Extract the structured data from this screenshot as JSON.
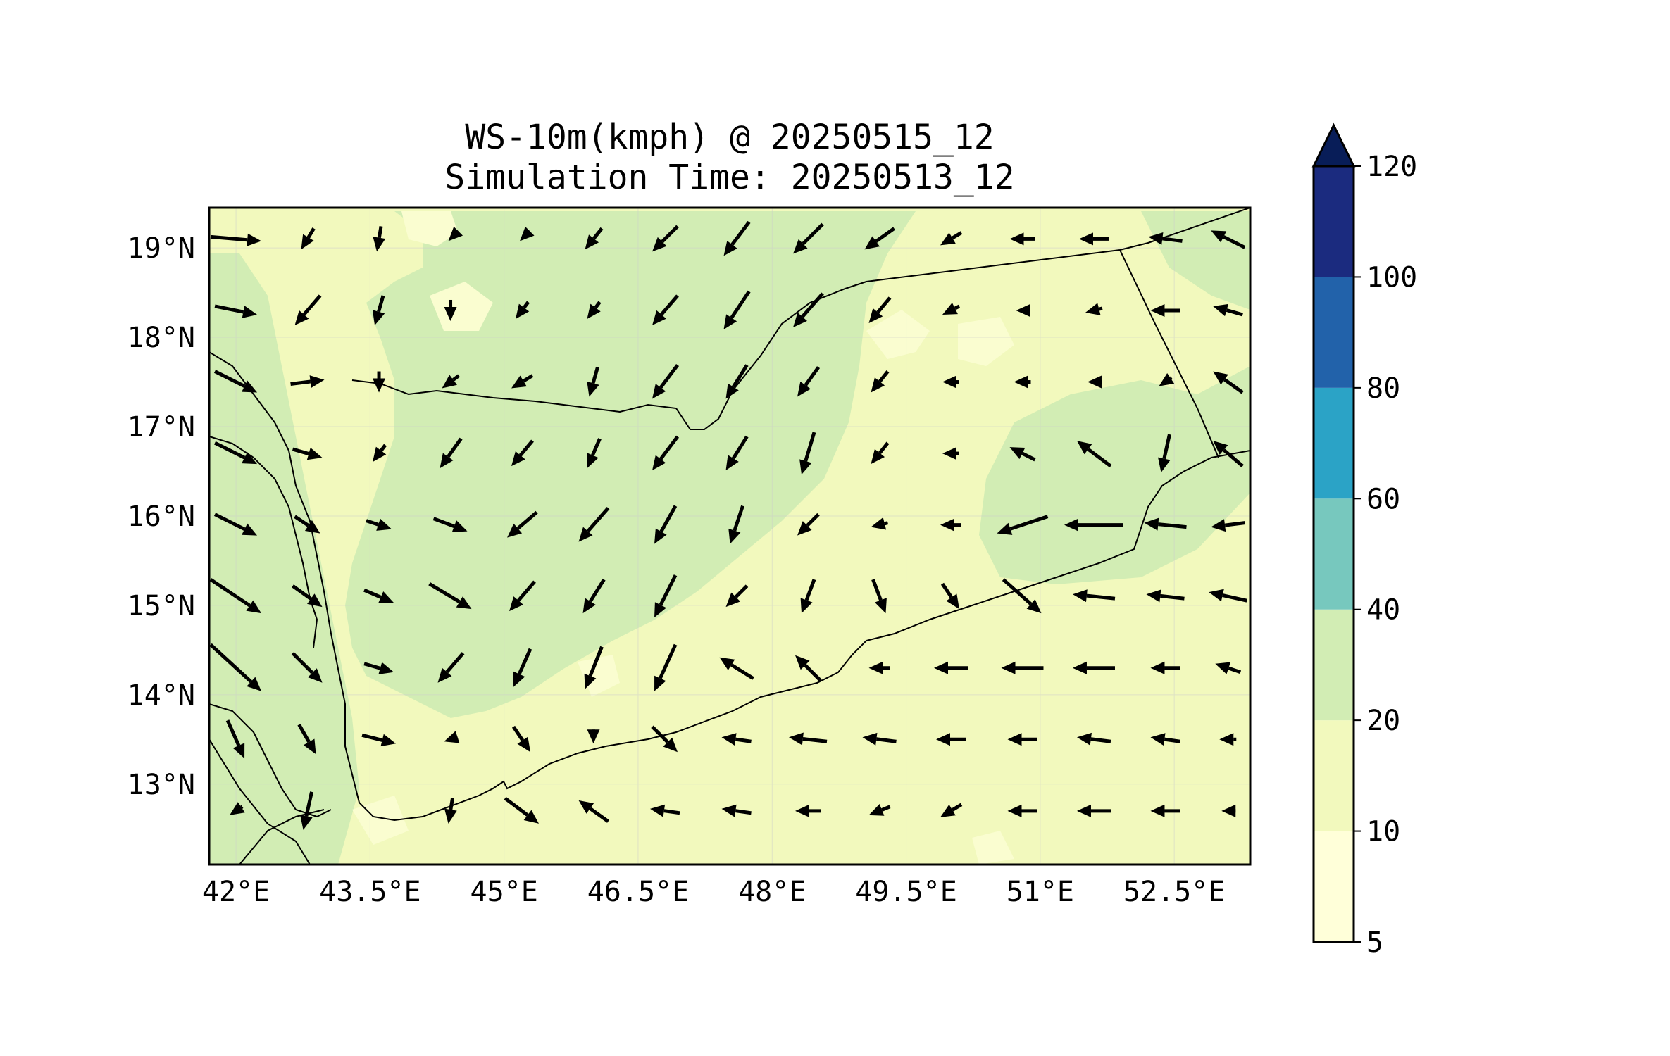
{
  "title": {
    "line1": "WS-10m(kmph) @ 20250515_12",
    "line2": "Simulation Time: 20250513_12"
  },
  "map": {
    "lon_range": [
      41.7,
      53.35
    ],
    "lat_range": [
      12.1,
      19.45
    ],
    "lon_ticks": [
      "42°E",
      "43.5°E",
      "45°E",
      "46.5°E",
      "48°E",
      "49.5°E",
      "51°E",
      "52.5°E"
    ],
    "lon_tick_values": [
      42,
      43.5,
      45,
      46.5,
      48,
      49.5,
      51,
      52.5
    ],
    "lat_ticks": [
      "19°N",
      "18°N",
      "17°N",
      "16°N",
      "15°N",
      "14°N",
      "13°N"
    ],
    "lat_tick_values": [
      19,
      18,
      17,
      16,
      15,
      14,
      13
    ],
    "gridlines": true,
    "background_color": "#f2f9bd",
    "wind_band_color": "#d2edb4",
    "light_patch_color": "#fafdd0",
    "coastline_color": "#000000"
  },
  "colorbar": {
    "levels": [
      "5",
      "10",
      "20",
      "40",
      "60",
      "80",
      "100",
      "120"
    ],
    "colors": [
      "#ffffd9",
      "#f2f9bd",
      "#d2edb4",
      "#77c8be",
      "#2ba3c6",
      "#2262aa",
      "#1b2b7f"
    ],
    "extend_color": "#081d58",
    "extend": "max"
  },
  "chart_data": {
    "type": "vector-field",
    "variable": "WS-10m(kmph)",
    "grid": {
      "lons": [
        42.0,
        42.8,
        43.6,
        44.4,
        45.2,
        46.0,
        46.8,
        47.6,
        48.4,
        49.2,
        50.0,
        50.8,
        51.6,
        52.4,
        53.1
      ],
      "lats": [
        19.1,
        18.3,
        17.5,
        16.7,
        15.9,
        15.1,
        14.3,
        13.5,
        12.7
      ]
    },
    "wind_vectors": [
      [
        [
          12,
          -1
        ],
        [
          -3,
          -5
        ],
        [
          -1,
          -6
        ],
        [
          -1,
          -1
        ],
        [
          -1,
          -1
        ],
        [
          -4,
          -5
        ],
        [
          -6,
          -6
        ],
        [
          -6,
          -8
        ],
        [
          -7,
          -7
        ],
        [
          -7,
          -5
        ],
        [
          -5,
          -3
        ],
        [
          -6,
          0
        ],
        [
          -7,
          0
        ],
        [
          -8,
          1
        ],
        [
          -8,
          4
        ]
      ],
      [
        [
          10,
          -2
        ],
        [
          -6,
          -7
        ],
        [
          -2,
          -7
        ],
        [
          0,
          -5
        ],
        [
          -3,
          -4
        ],
        [
          -3,
          -4
        ],
        [
          -6,
          -7
        ],
        [
          -6,
          -9
        ],
        [
          -7,
          -8
        ],
        [
          -5,
          -6
        ],
        [
          -4,
          -2
        ],
        [
          -3,
          0
        ],
        [
          -4,
          -1
        ],
        [
          -7,
          0
        ],
        [
          -7,
          2
        ]
      ],
      [
        [
          10,
          -5
        ],
        [
          8,
          1
        ],
        [
          0,
          -5
        ],
        [
          -4,
          -3
        ],
        [
          -5,
          -3
        ],
        [
          -2,
          -7
        ],
        [
          -6,
          -8
        ],
        [
          -5,
          -8
        ],
        [
          -5,
          -7
        ],
        [
          -4,
          -5
        ],
        [
          -4,
          0
        ],
        [
          -4,
          0
        ],
        [
          -3,
          0
        ],
        [
          -3,
          -2
        ],
        [
          -7,
          5
        ]
      ],
      [
        [
          10,
          -5
        ],
        [
          7,
          -2
        ],
        [
          -3,
          -4
        ],
        [
          -5,
          -7
        ],
        [
          -5,
          -6
        ],
        [
          -3,
          -7
        ],
        [
          -6,
          -8
        ],
        [
          -5,
          -8
        ],
        [
          -3,
          -10
        ],
        [
          -4,
          -5
        ],
        [
          -4,
          0
        ],
        [
          -6,
          3
        ],
        [
          -8,
          6
        ],
        [
          -2,
          -9
        ],
        [
          -7,
          6
        ]
      ],
      [
        [
          10,
          -5
        ],
        [
          6,
          -4
        ],
        [
          6,
          -2
        ],
        [
          8,
          -3
        ],
        [
          -7,
          -6
        ],
        [
          -7,
          -8
        ],
        [
          -5,
          -9
        ],
        [
          -3,
          -9
        ],
        [
          -5,
          -5
        ],
        [
          -4,
          -1
        ],
        [
          -5,
          0
        ],
        [
          -12,
          -4
        ],
        [
          -14,
          0
        ],
        [
          -10,
          1
        ],
        [
          -8,
          -1
        ]
      ],
      [
        [
          12,
          -8
        ],
        [
          7,
          -5
        ],
        [
          7,
          -3
        ],
        [
          10,
          -6
        ],
        [
          -6,
          -7
        ],
        [
          -5,
          -8
        ],
        [
          -5,
          -10
        ],
        [
          -5,
          -5
        ],
        [
          -3,
          -8
        ],
        [
          3,
          -8
        ],
        [
          4,
          -6
        ],
        [
          9,
          -8
        ],
        [
          -10,
          1
        ],
        [
          -9,
          1
        ],
        [
          -9,
          2
        ]
      ],
      [
        [
          12,
          -11
        ],
        [
          7,
          -7
        ],
        [
          7,
          -2
        ],
        [
          -6,
          -7
        ],
        [
          -4,
          -9
        ],
        [
          -4,
          -10
        ],
        [
          -5,
          -11
        ],
        [
          -8,
          5
        ],
        [
          -6,
          6
        ],
        [
          -5,
          0
        ],
        [
          -8,
          0
        ],
        [
          -10,
          0
        ],
        [
          -10,
          0
        ],
        [
          -7,
          0
        ],
        [
          -6,
          2
        ]
      ],
      [
        [
          4,
          -9
        ],
        [
          4,
          -7
        ],
        [
          8,
          -2
        ],
        [
          -3,
          -1
        ],
        [
          4,
          -6
        ],
        [
          0,
          -2
        ],
        [
          6,
          -6
        ],
        [
          -7,
          1
        ],
        [
          -9,
          1
        ],
        [
          -8,
          1
        ],
        [
          -7,
          0
        ],
        [
          -7,
          0
        ],
        [
          -8,
          1
        ],
        [
          -7,
          1
        ],
        [
          -4,
          0
        ]
      ],
      [
        [
          -3,
          -2
        ],
        [
          -2,
          -9
        ],
        [
          0,
          0
        ],
        [
          -1,
          -6
        ],
        [
          8,
          -6
        ],
        [
          -7,
          5
        ],
        [
          -7,
          1
        ],
        [
          -7,
          1
        ],
        [
          -6,
          0
        ],
        [
          -5,
          -2
        ],
        [
          -5,
          -3
        ],
        [
          -7,
          0
        ],
        [
          -8,
          0
        ],
        [
          -7,
          0
        ],
        [
          -3,
          0
        ]
      ]
    ]
  }
}
